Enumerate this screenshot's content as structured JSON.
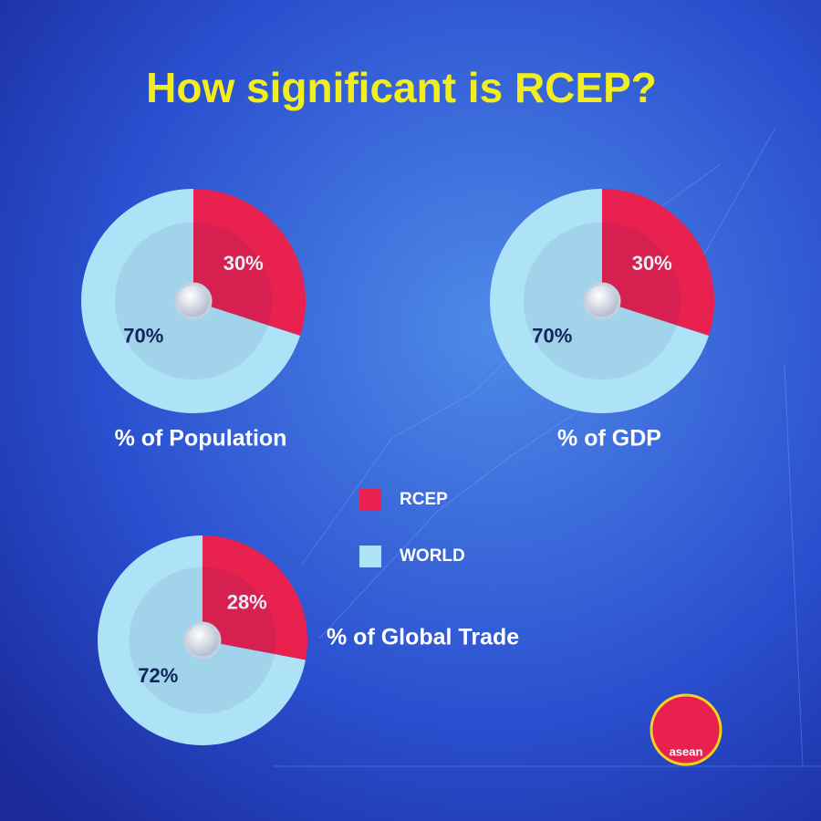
{
  "title": "How significant is RCEP?",
  "logo": "asean",
  "chart_data": [
    {
      "type": "pie",
      "title": "% of Population",
      "categories": [
        "RCEP",
        "WORLD"
      ],
      "values": [
        30,
        70
      ],
      "value_labels": [
        "30%",
        "70%"
      ],
      "colors": [
        "#e8214f",
        "#aee3f7"
      ]
    },
    {
      "type": "pie",
      "title": "% of GDP",
      "categories": [
        "RCEP",
        "WORLD"
      ],
      "values": [
        30,
        70
      ],
      "value_labels": [
        "30%",
        "70%"
      ],
      "colors": [
        "#e8214f",
        "#aee3f7"
      ]
    },
    {
      "type": "pie",
      "title": "% of Global Trade",
      "categories": [
        "RCEP",
        "WORLD"
      ],
      "values": [
        28,
        72
      ],
      "value_labels": [
        "28%",
        "72%"
      ],
      "colors": [
        "#e8214f",
        "#aee3f7"
      ]
    }
  ]
}
